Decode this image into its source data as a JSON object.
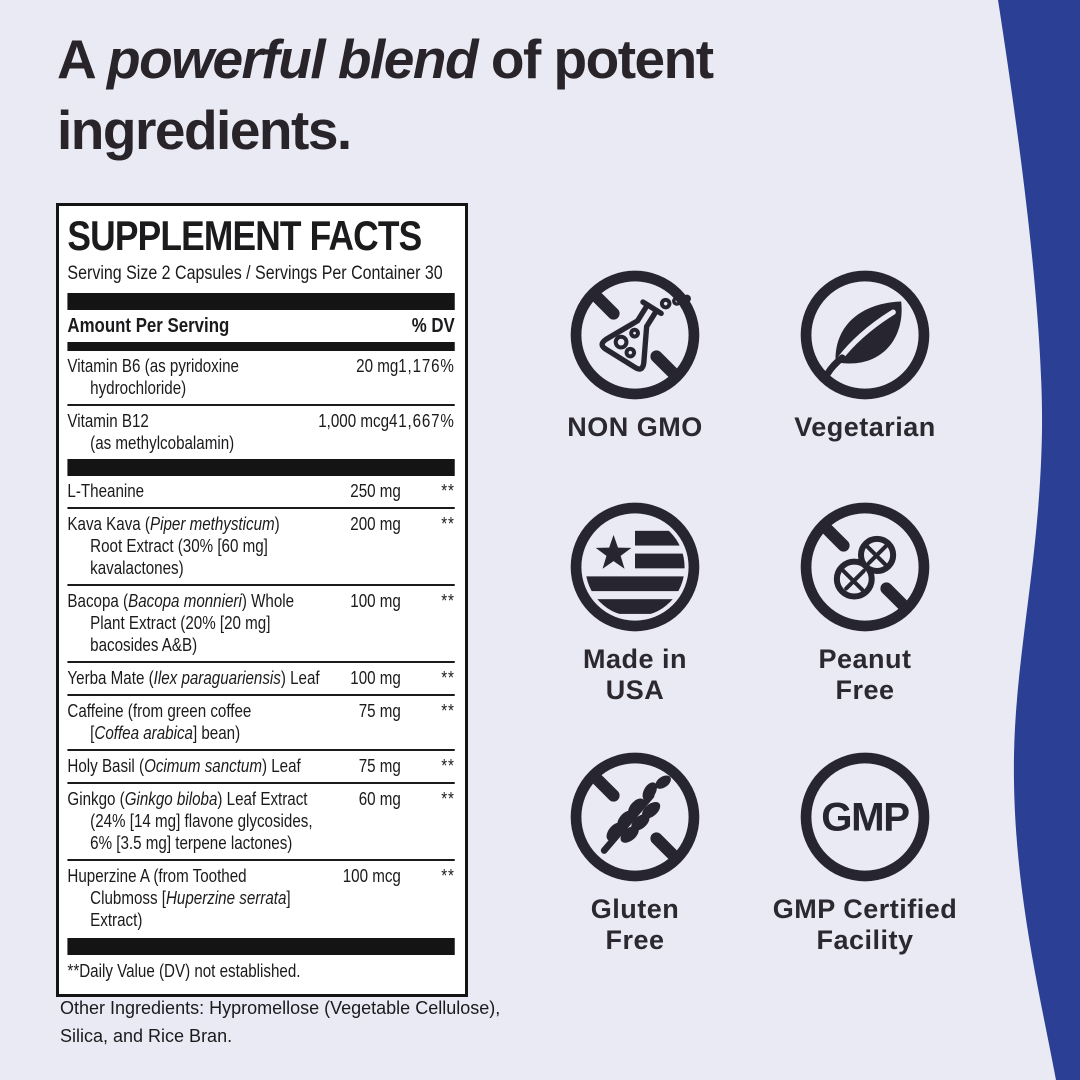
{
  "page": {
    "background": "#e9eaf3",
    "accent_band_color": "#2b3f94",
    "text_color": "#28242a"
  },
  "headline": "A *powerful blend* of potent ingredients.",
  "facts": {
    "title": "SUPPLEMENT FACTS",
    "serving": "Serving Size 2 Capsules / Servings Per Container 30",
    "col_amount": "Amount Per Serving",
    "col_dv": "% DV",
    "rows": [
      {
        "name": "Vitamin B6 (as pyridoxine\nhydrochloride)",
        "amount": "20 mg",
        "dv": "1,176%"
      },
      {
        "name": "Vitamin B12\n(as methylcobalamin)",
        "amount": "1,000 mcg",
        "dv": "41,667%"
      },
      {
        "name": "L-Theanine",
        "amount": "250 mg",
        "dv": "**"
      },
      {
        "name": "Kava Kava (*Piper methysticum*)\nRoot Extract (30% [60 mg]\nkavalactones)",
        "amount": "200 mg",
        "dv": "**"
      },
      {
        "name": "Bacopa (*Bacopa monnieri*) Whole\nPlant Extract (20% [20 mg]\nbacosides A&B)",
        "amount": "100 mg",
        "dv": "**"
      },
      {
        "name": "Yerba Mate (*Ilex paraguariensis*) Leaf",
        "amount": "100 mg",
        "dv": "**"
      },
      {
        "name": "Caffeine (from green coffee\n[*Coffea arabica*] bean)",
        "amount": "75 mg",
        "dv": "**"
      },
      {
        "name": "Holy Basil (*Ocimum sanctum*) Leaf",
        "amount": "75 mg",
        "dv": "**"
      },
      {
        "name": "Ginkgo (*Ginkgo biloba*) Leaf Extract\n(24% [14 mg] flavone glycosides,\n6% [3.5 mg] terpene lactones)",
        "amount": "60 mg",
        "dv": "**"
      },
      {
        "name": "Huperzine A (from Toothed\nClubmoss [*Huperzine serrata*]\nExtract)",
        "amount": "100 mcg",
        "dv": "**"
      }
    ],
    "footnote": "**Daily Value (DV) not established.",
    "other_ingredients": "Other Ingredients: Hypromellose (Vegetable Cellulose), Silica, and Rice Bran."
  },
  "badges": [
    {
      "icon": "no-gmo-flask",
      "label": "NON GMO",
      "lines": [
        "NON GMO"
      ]
    },
    {
      "icon": "vegetarian-leaf",
      "label": "Vegetarian",
      "lines": [
        "Vegetarian"
      ]
    },
    {
      "icon": "usa-flag",
      "label": "Made in USA",
      "lines": [
        "Made in",
        "USA"
      ]
    },
    {
      "icon": "no-peanut",
      "label": "Peanut Free",
      "lines": [
        "Peanut",
        "Free"
      ]
    },
    {
      "icon": "no-wheat",
      "label": "Gluten Free",
      "lines": [
        "Gluten",
        "Free"
      ]
    },
    {
      "icon": "gmp-seal",
      "label": "GMP Certified Facility",
      "lines": [
        "GMP Certified",
        "Facility"
      ],
      "icon_text": "GMP"
    }
  ]
}
